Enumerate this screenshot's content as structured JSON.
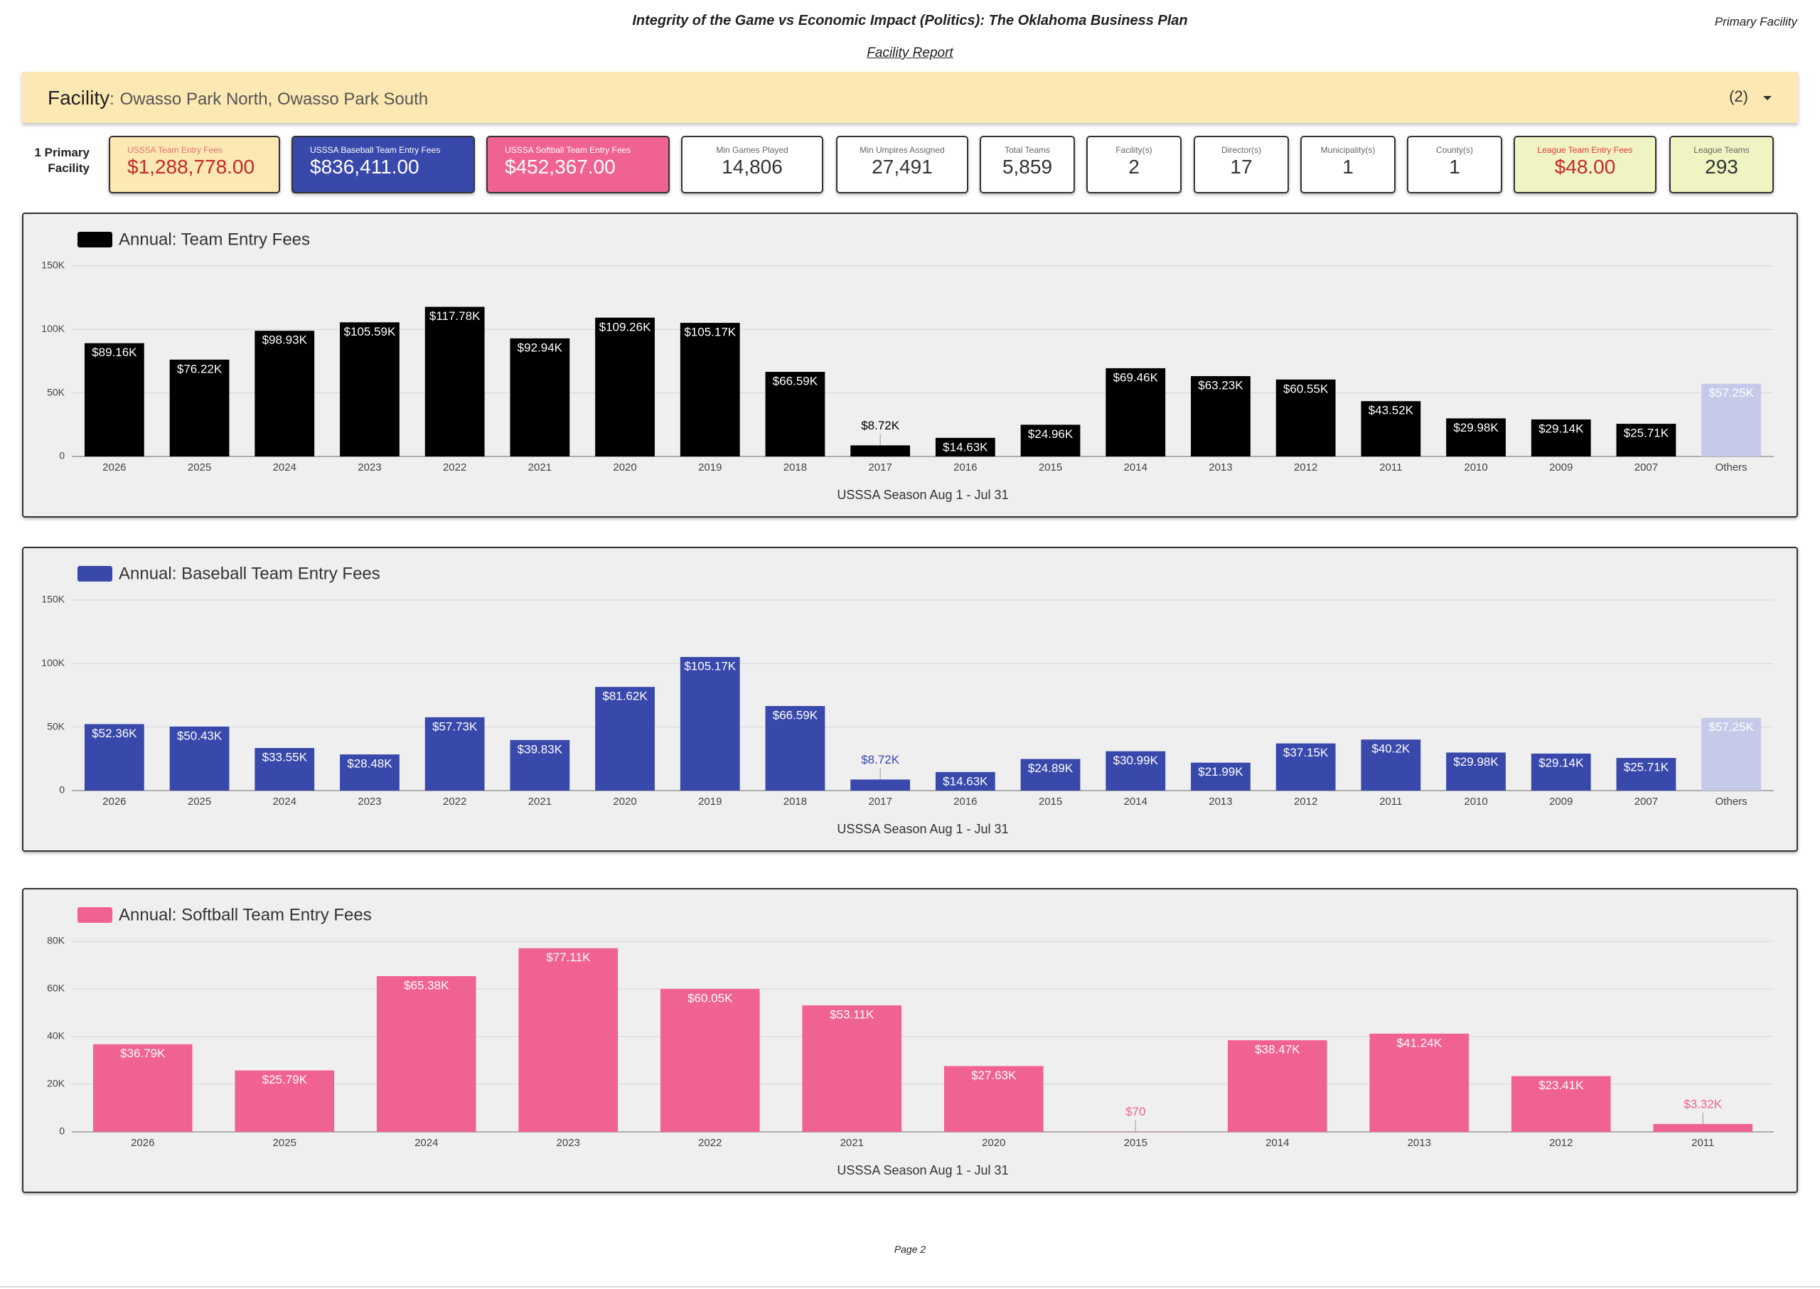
{
  "header": {
    "title": "Integrity of the Game vs Economic Impact (Politics): The Oklahoma Business Plan",
    "corner": "Primary Facility",
    "subtitle": "Facility Report"
  },
  "facility": {
    "label": "Facility",
    "separator": ":",
    "selection": "Owasso Park North, Owasso Park South",
    "count_label": "(2)"
  },
  "kpi_caption": "1 Primary Facility",
  "kpis": [
    {
      "label": "USSSA Team Entry Fees",
      "value": "$1,288,778.00"
    },
    {
      "label": "USSSA Baseball Team Entry Fees",
      "value": "$836,411.00"
    },
    {
      "label": "USSSA Softball Team Entry Fees",
      "value": "$452,367.00"
    },
    {
      "label": "Min Games Played",
      "value": "14,806"
    },
    {
      "label": "Min Umpires Assigned",
      "value": "27,491"
    },
    {
      "label": "Total Teams",
      "value": "5,859"
    },
    {
      "label": "Facility(s)",
      "value": "2"
    },
    {
      "label": "Director(s)",
      "value": "17"
    },
    {
      "label": "Municipality(s)",
      "value": "1"
    },
    {
      "label": "County(s)",
      "value": "1"
    },
    {
      "label": "League Team Entry Fees",
      "value": "$48.00"
    },
    {
      "label": "League Teams",
      "value": "293"
    }
  ],
  "chart_data": [
    {
      "type": "bar",
      "x_label": "USSSA Season Aug 1 - Jul 31",
      "categories": [
        "2026",
        "2025",
        "2024",
        "2023",
        "2022",
        "2021",
        "2020",
        "2019",
        "2018",
        "2017",
        "2016",
        "2015",
        "2014",
        "2013",
        "2012",
        "2011",
        "2010",
        "2009",
        "2007",
        "Others"
      ],
      "series": [
        {
          "name": "Annual: Team Entry Fees",
          "color": "#000000",
          "colors": [
            "#000000",
            "#000000",
            "#000000",
            "#000000",
            "#000000",
            "#000000",
            "#000000",
            "#000000",
            "#000000",
            "#000000",
            "#000000",
            "#000000",
            "#000000",
            "#000000",
            "#000000",
            "#000000",
            "#000000",
            "#000000",
            "#000000",
            "#c5cae9"
          ],
          "values": [
            89160,
            76220,
            98930,
            105590,
            117780,
            92940,
            109260,
            105170,
            66590,
            8720,
            14630,
            24960,
            69460,
            63230,
            60550,
            43520,
            29980,
            29140,
            25710,
            57250
          ],
          "value_labels": [
            "$89.16K",
            "$76.22K",
            "$98.93K",
            "$105.59K",
            "$117.78K",
            "$92.94K",
            "$109.26K",
            "$105.17K",
            "$66.59K",
            "$8.72K",
            "$14.63K",
            "$24.96K",
            "$69.46K",
            "$63.23K",
            "$60.55K",
            "$43.52K",
            "$29.98K",
            "$29.14K",
            "$25.71K",
            "$57.25K"
          ]
        }
      ],
      "ylim": [
        0,
        150000
      ],
      "yticks": [
        0,
        {
          "value": 50000,
          "label": "50K"
        },
        {
          "value": 100000,
          "label": "100K"
        },
        {
          "value": 150000,
          "label": "150K"
        }
      ],
      "grid": true
    },
    {
      "type": "bar",
      "x_label": "USSSA Season Aug 1 - Jul 31",
      "categories": [
        "2026",
        "2025",
        "2024",
        "2023",
        "2022",
        "2021",
        "2020",
        "2019",
        "2018",
        "2017",
        "2016",
        "2015",
        "2014",
        "2013",
        "2012",
        "2011",
        "2010",
        "2009",
        "2007",
        "Others"
      ],
      "series": [
        {
          "name": "Annual: Baseball Team Entry Fees",
          "color": "#3949ab",
          "colors": [
            "#3949ab",
            "#3949ab",
            "#3949ab",
            "#3949ab",
            "#3949ab",
            "#3949ab",
            "#3949ab",
            "#3949ab",
            "#3949ab",
            "#3949ab",
            "#3949ab",
            "#3949ab",
            "#3949ab",
            "#3949ab",
            "#3949ab",
            "#3949ab",
            "#3949ab",
            "#3949ab",
            "#3949ab",
            "#c5cae9"
          ],
          "values": [
            52360,
            50430,
            33550,
            28480,
            57730,
            39830,
            81620,
            105170,
            66590,
            8720,
            14630,
            24890,
            30990,
            21990,
            37150,
            40200,
            29980,
            29140,
            25710,
            57250
          ],
          "value_labels": [
            "$52.36K",
            "$50.43K",
            "$33.55K",
            "$28.48K",
            "$57.73K",
            "$39.83K",
            "$81.62K",
            "$105.17K",
            "$66.59K",
            "$8.72K",
            "$14.63K",
            "$24.89K",
            "$30.99K",
            "$21.99K",
            "$37.15K",
            "$40.2K",
            "$29.98K",
            "$29.14K",
            "$25.71K",
            "$57.25K"
          ]
        }
      ],
      "ylim": [
        0,
        150000
      ],
      "yticks": [
        0,
        {
          "value": 50000,
          "label": "50K"
        },
        {
          "value": 100000,
          "label": "100K"
        },
        {
          "value": 150000,
          "label": "150K"
        }
      ],
      "grid": true
    },
    {
      "type": "bar",
      "x_label": "USSSA Season Aug 1 - Jul 31",
      "categories": [
        "2026",
        "2025",
        "2024",
        "2023",
        "2022",
        "2021",
        "2020",
        "2015",
        "2014",
        "2013",
        "2012",
        "2011"
      ],
      "series": [
        {
          "name": "Annual: Softball Team Entry Fees",
          "color": "#f06292",
          "colors": [
            "#f06292",
            "#f06292",
            "#f06292",
            "#f06292",
            "#f06292",
            "#f06292",
            "#f06292",
            "#f06292",
            "#f06292",
            "#f06292",
            "#f06292",
            "#f06292"
          ],
          "values": [
            36790,
            25790,
            65380,
            77110,
            60050,
            53110,
            27630,
            70,
            38470,
            41240,
            23410,
            3320
          ],
          "value_labels": [
            "$36.79K",
            "$25.79K",
            "$65.38K",
            "$77.11K",
            "$60.05K",
            "$53.11K",
            "$27.63K",
            "$70",
            "$38.47K",
            "$41.24K",
            "$23.41K",
            "$3.32K"
          ]
        }
      ],
      "ylim": [
        0,
        80000
      ],
      "yticks": [
        0,
        {
          "value": 20000,
          "label": "20K"
        },
        {
          "value": 40000,
          "label": "40K"
        },
        {
          "value": 60000,
          "label": "60K"
        },
        {
          "value": 80000,
          "label": "80K"
        }
      ],
      "grid": true
    }
  ],
  "footer": {
    "page": "Page 2"
  }
}
